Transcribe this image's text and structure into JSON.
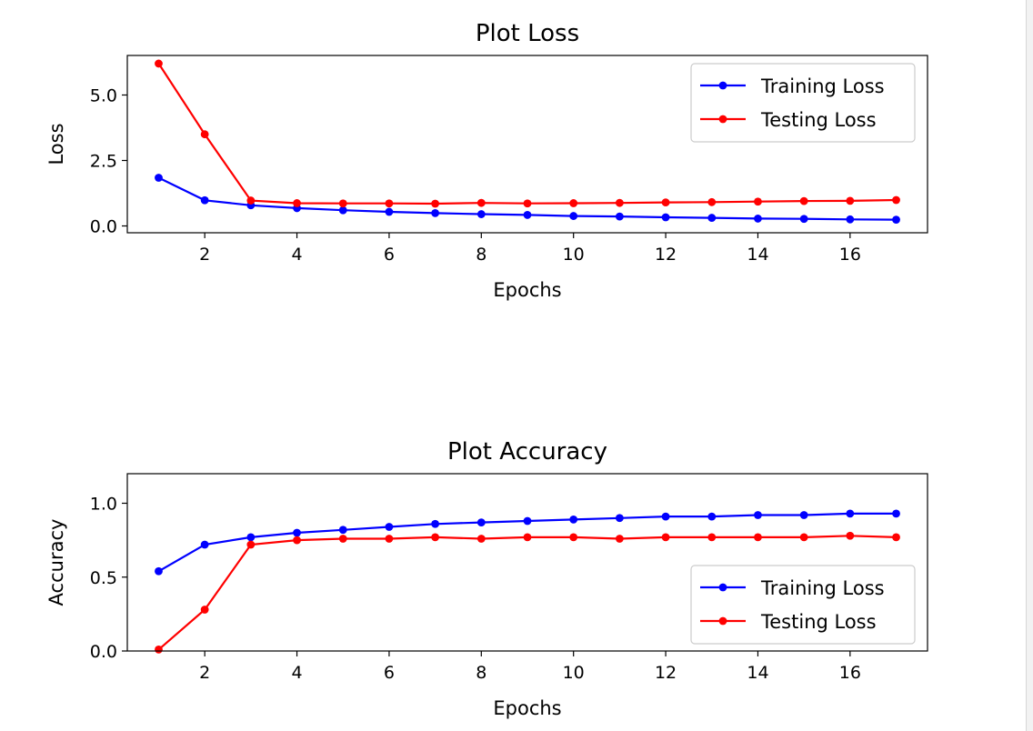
{
  "colors": {
    "training": "#0000ff",
    "testing": "#ff0000"
  },
  "chart_data": [
    {
      "type": "line",
      "title": "Plot Loss",
      "xlabel": "Epochs",
      "ylabel": "Loss",
      "xlim": [
        0.32,
        17.68
      ],
      "ylim": [
        -0.26,
        6.51
      ],
      "xticks": [
        2,
        4,
        6,
        8,
        10,
        12,
        14,
        16
      ],
      "xtick_labels": [
        "2",
        "4",
        "6",
        "8",
        "10",
        "12",
        "14",
        "16"
      ],
      "yticks": [
        0,
        2.5,
        5
      ],
      "ytick_labels": [
        "0.0",
        "2.5",
        "5.0"
      ],
      "legend": "top-right",
      "grid": false,
      "x": [
        1,
        2,
        3,
        4,
        5,
        6,
        7,
        8,
        9,
        10,
        11,
        12,
        13,
        14,
        15,
        16,
        17
      ],
      "series": [
        {
          "name": "Training Loss",
          "values": [
            1.84,
            0.98,
            0.79,
            0.68,
            0.6,
            0.54,
            0.49,
            0.45,
            0.42,
            0.38,
            0.36,
            0.33,
            0.31,
            0.28,
            0.27,
            0.25,
            0.24
          ]
        },
        {
          "name": "Testing Loss",
          "values": [
            6.2,
            3.5,
            0.97,
            0.87,
            0.86,
            0.86,
            0.85,
            0.88,
            0.86,
            0.87,
            0.88,
            0.9,
            0.91,
            0.93,
            0.95,
            0.96,
            0.99
          ]
        }
      ]
    },
    {
      "type": "line",
      "title": "Plot Accuracy",
      "xlabel": "Epochs",
      "ylabel": "Accuracy",
      "xlim": [
        0.32,
        17.68
      ],
      "ylim": [
        0,
        1.2
      ],
      "xticks": [
        2,
        4,
        6,
        8,
        10,
        12,
        14,
        16
      ],
      "xtick_labels": [
        "2",
        "4",
        "6",
        "8",
        "10",
        "12",
        "14",
        "16"
      ],
      "yticks": [
        0,
        0.5,
        1
      ],
      "ytick_labels": [
        "0.0",
        "0.5",
        "1.0"
      ],
      "legend": "lower-right",
      "grid": false,
      "x": [
        1,
        2,
        3,
        4,
        5,
        6,
        7,
        8,
        9,
        10,
        11,
        12,
        13,
        14,
        15,
        16,
        17
      ],
      "series": [
        {
          "name": "Training Loss",
          "values": [
            0.54,
            0.72,
            0.77,
            0.8,
            0.82,
            0.84,
            0.86,
            0.87,
            0.88,
            0.89,
            0.9,
            0.91,
            0.91,
            0.92,
            0.92,
            0.93,
            0.93
          ]
        },
        {
          "name": "Testing Loss",
          "values": [
            0.01,
            0.28,
            0.72,
            0.75,
            0.76,
            0.76,
            0.77,
            0.76,
            0.77,
            0.77,
            0.76,
            0.77,
            0.77,
            0.77,
            0.77,
            0.78,
            0.77
          ]
        }
      ]
    }
  ]
}
